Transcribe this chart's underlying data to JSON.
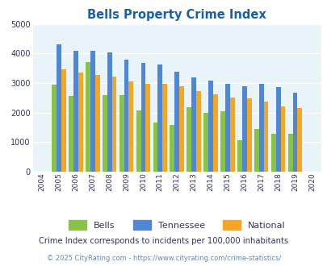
{
  "title": "Bells Property Crime Index",
  "years": [
    2004,
    2005,
    2006,
    2007,
    2008,
    2009,
    2010,
    2011,
    2012,
    2013,
    2014,
    2015,
    2016,
    2017,
    2018,
    2019,
    2020
  ],
  "bells": [
    null,
    2950,
    2550,
    3700,
    2600,
    2600,
    2080,
    1650,
    1580,
    2170,
    2000,
    2030,
    1050,
    1440,
    1280,
    1280,
    null
  ],
  "tennessee": [
    null,
    4300,
    4100,
    4080,
    4040,
    3780,
    3680,
    3620,
    3380,
    3180,
    3080,
    2960,
    2900,
    2960,
    2860,
    2660,
    null
  ],
  "national": [
    null,
    3450,
    3360,
    3260,
    3230,
    3060,
    2960,
    2960,
    2890,
    2730,
    2620,
    2510,
    2470,
    2380,
    2210,
    2140,
    null
  ],
  "bar_width": 0.28,
  "bells_color": "#88c441",
  "tennessee_color": "#4d87d6",
  "national_color": "#f5a623",
  "bg_color": "#e8f4f8",
  "ylim": [
    0,
    5000
  ],
  "yticks": [
    0,
    1000,
    2000,
    3000,
    4000,
    5000
  ],
  "subtitle": "Crime Index corresponds to incidents per 100,000 inhabitants",
  "footer": "© 2025 CityRating.com - https://www.cityrating.com/crime-statistics/",
  "legend_labels": [
    "Bells",
    "Tennessee",
    "National"
  ],
  "title_color": "#1a5fa8",
  "text_color": "#333355",
  "footer_color": "#6688aa"
}
